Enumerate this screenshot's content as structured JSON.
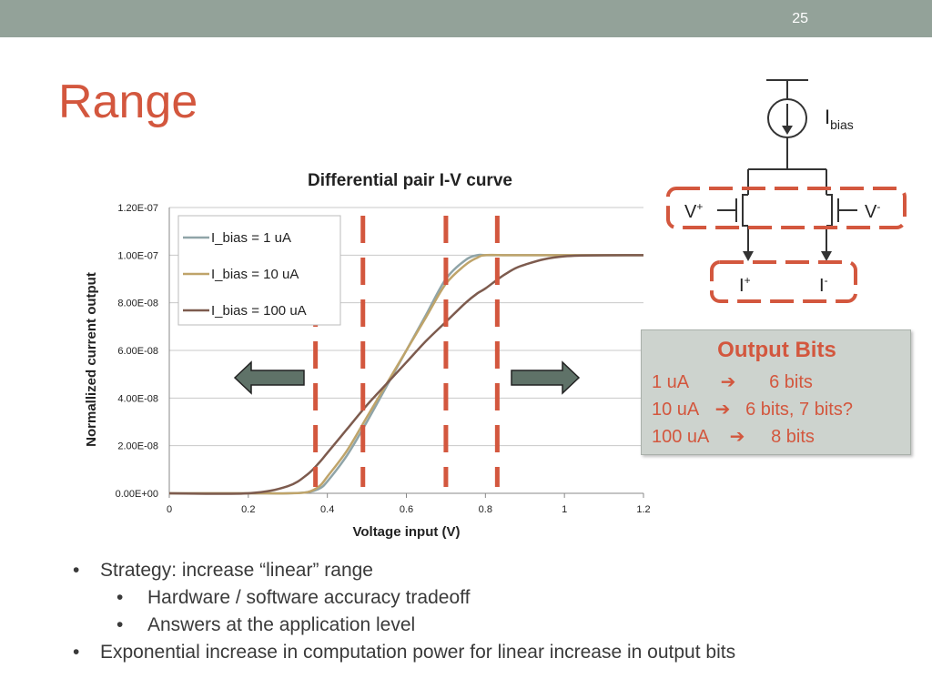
{
  "slide": {
    "number": "25",
    "title": "Range"
  },
  "colors": {
    "accent": "#d3573e",
    "top_bar": "#93a299",
    "text": "#3a3a3a",
    "arrow_fill": "#5f7268",
    "box_fill": "#cdd3ce"
  },
  "chart_data": {
    "type": "line",
    "title": "Differential pair I-V curve",
    "xlabel": "Voltage input (V)",
    "ylabel": "Normallized current output",
    "xlim": [
      0,
      1.2
    ],
    "ylim": [
      0,
      1.2e-07
    ],
    "x_ticks": [
      "0",
      "0.2",
      "0.4",
      "0.6",
      "0.8",
      "1",
      "1.2"
    ],
    "y_ticks": [
      "0.00E+00",
      "2.00E-08",
      "4.00E-08",
      "6.00E-08",
      "8.00E-08",
      "1.00E-07",
      "1.20E-07"
    ],
    "grid": "horizontal",
    "legend_position": "top-left inside",
    "x": [
      0,
      0.2,
      0.3,
      0.35,
      0.38,
      0.4,
      0.45,
      0.5,
      0.55,
      0.6,
      0.65,
      0.7,
      0.75,
      0.78,
      0.8,
      0.85,
      0.9,
      1.0,
      1.2
    ],
    "series": [
      {
        "name": "I_bias = 1 uA",
        "color": "#8fa4a8",
        "values": [
          0,
          0,
          0,
          5e-10,
          2e-09,
          5e-09,
          1.6e-08,
          3e-08,
          4.5e-08,
          6e-08,
          7.5e-08,
          9e-08,
          9.8e-08,
          1e-07,
          1e-07,
          1e-07,
          1e-07,
          1e-07,
          1e-07
        ]
      },
      {
        "name": "I_bias = 10 uA",
        "color": "#bfa46a",
        "values": [
          0,
          0,
          0,
          5e-10,
          3e-09,
          7e-09,
          1.8e-08,
          3.2e-08,
          4.6e-08,
          6e-08,
          7.4e-08,
          8.8e-08,
          9.6e-08,
          9.9e-08,
          1e-07,
          1e-07,
          1e-07,
          1e-07,
          1e-07
        ]
      },
      {
        "name": "I_bias = 100 uA",
        "color": "#7d5b4e",
        "values": [
          0,
          0,
          3e-09,
          8e-09,
          1.3e-08,
          1.7e-08,
          2.7e-08,
          3.7e-08,
          4.6e-08,
          5.5e-08,
          6.4e-08,
          7.2e-08,
          8e-08,
          8.4e-08,
          8.6e-08,
          9.2e-08,
          9.6e-08,
          9.95e-08,
          1e-07
        ]
      }
    ],
    "marker_lines_x": [
      0.37,
      0.49,
      0.7,
      0.83
    ]
  },
  "circuit": {
    "ibias_label": "I",
    "ibias_sub": "bias",
    "v_plus": "V",
    "v_plus_sup": "+",
    "v_minus": "V",
    "v_minus_sup": "-",
    "i_plus": "I",
    "i_plus_sup": "+",
    "i_minus": "I",
    "i_minus_sup": "-"
  },
  "output_bits": {
    "title": "Output Bits",
    "rows": [
      {
        "label": "1 uA",
        "arrow": "➔",
        "value": "6 bits"
      },
      {
        "label": "10 uA",
        "arrow": "➔",
        "value": "6 bits, 7 bits?"
      },
      {
        "label": "100 uA",
        "arrow": "➔",
        "value": "8 bits"
      }
    ]
  },
  "bullets": [
    {
      "level": 1,
      "text": "Strategy: increase “linear” range"
    },
    {
      "level": 2,
      "text": "Hardware / software accuracy tradeoff"
    },
    {
      "level": 2,
      "text": "Answers at the application level"
    },
    {
      "level": 1,
      "text": "Exponential increase in computation power for linear increase in output bits"
    }
  ]
}
